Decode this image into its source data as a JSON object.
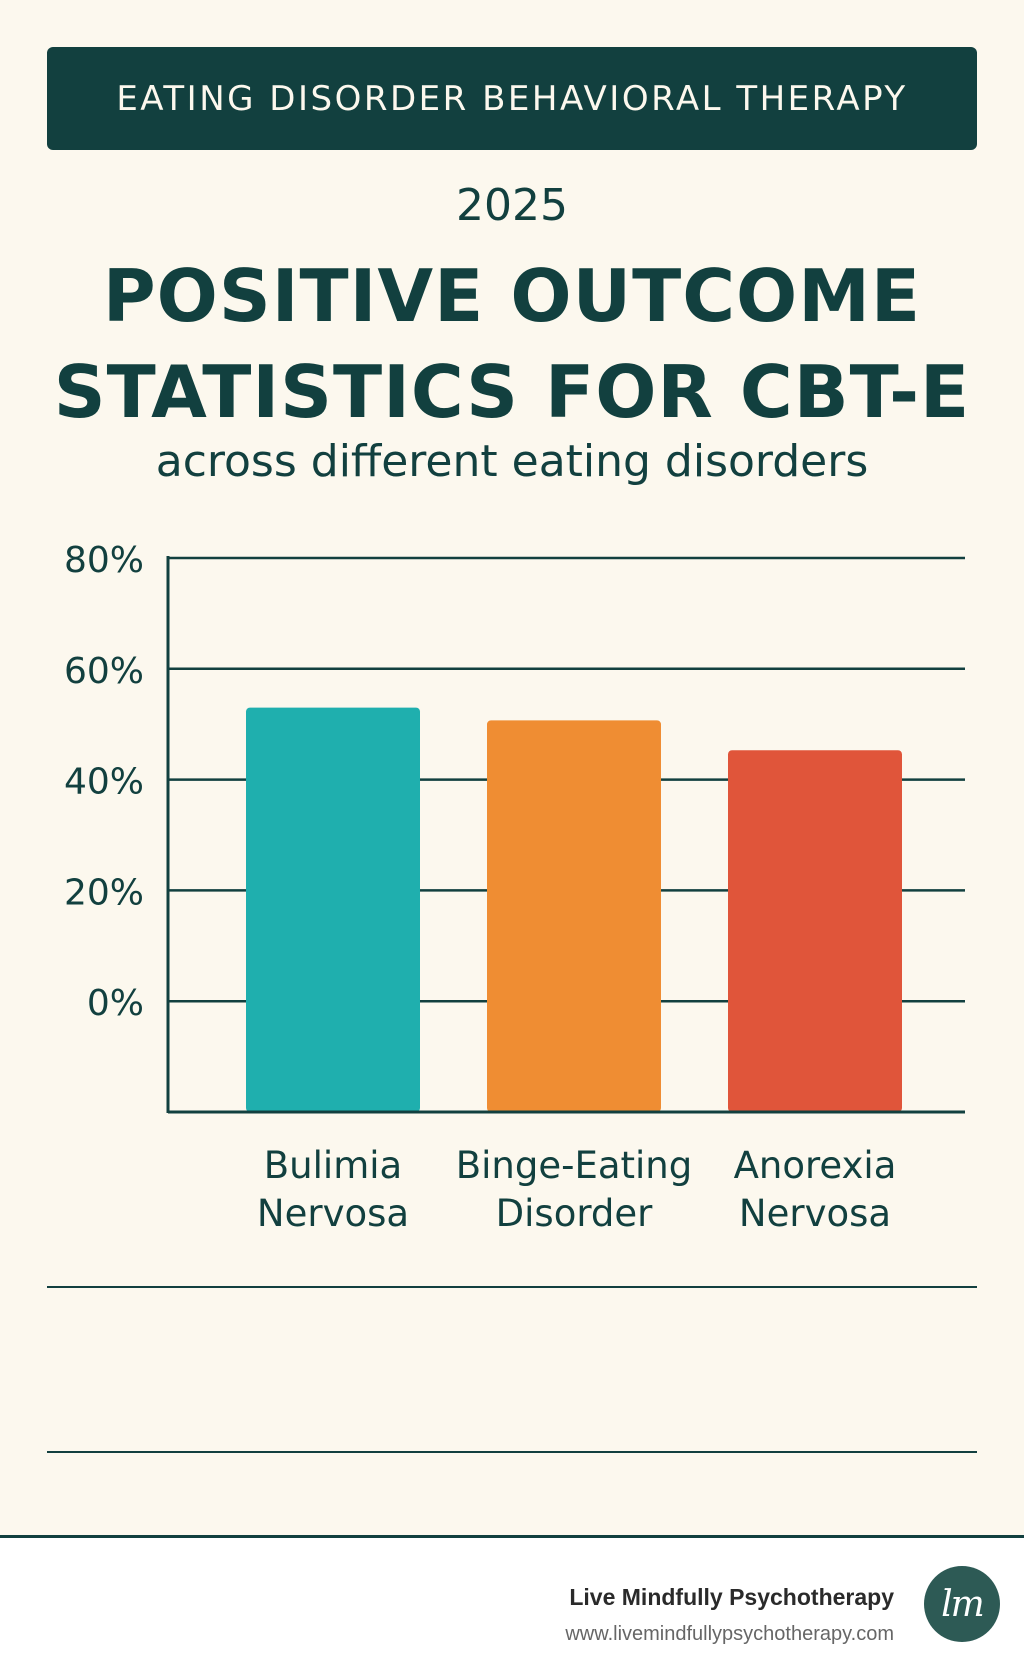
{
  "header": {
    "banner": "EATING DISORDER BEHAVIORAL THERAPY",
    "year": "2025",
    "title_line1": "POSITIVE OUTCOME",
    "title_line2": "STATISTICS FOR CBT-E",
    "subtitle": "across different eating disorders"
  },
  "colors": {
    "dark_teal": "#12403f",
    "background": "#fcf8ee",
    "bar_bulimia": "#1fafae",
    "bar_binge": "#ef8d33",
    "bar_anorexia": "#e0553a"
  },
  "chart_data": {
    "type": "bar",
    "categories": [
      [
        "Bulimia",
        "Nervosa"
      ],
      [
        "Binge-Eating",
        "Disorder"
      ],
      [
        "Anorexia",
        "Nervosa"
      ]
    ],
    "values": [
      53,
      50.7,
      45.3
    ],
    "y_tick_labels": [
      "80%",
      "60%",
      "40%",
      "20%",
      "0%"
    ],
    "ylim": [
      -20,
      80
    ],
    "bar_colors": [
      "#1fafae",
      "#ef8d33",
      "#e0553a"
    ],
    "grid": true,
    "legend": false
  },
  "footer": {
    "brand_name": "Live Mindfully Psychotherapy",
    "brand_url": "www.livemindfullypsychotherapy.com",
    "logo_text": "lm"
  }
}
